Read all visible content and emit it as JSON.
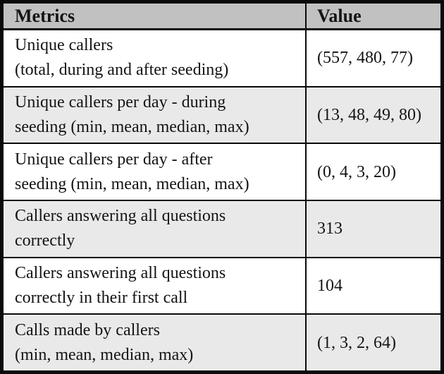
{
  "table": {
    "header": {
      "metric": "Metrics",
      "value": "Value"
    },
    "rows": [
      {
        "lines": [
          "Unique callers",
          "(total, during and after seeding)"
        ],
        "value": "(557, 480, 77)"
      },
      {
        "lines": [
          "Unique callers per day - during",
          "seeding (min, mean, median, max)"
        ],
        "value": "(13, 48, 49, 80)"
      },
      {
        "lines": [
          "Unique callers per day - after",
          "seeding (min, mean, median, max)"
        ],
        "value": "(0, 4, 3, 20)"
      },
      {
        "lines": [
          "Callers answering all questions",
          "correctly"
        ],
        "value": "313"
      },
      {
        "lines": [
          "Callers answering all questions",
          "correctly in their first call"
        ],
        "value": "104"
      },
      {
        "lines": [
          "Calls made by callers",
          "(min, mean, median, max)"
        ],
        "value": "(1, 3, 2, 64)"
      }
    ]
  },
  "colors": {
    "header_bg": "#c1c1c1",
    "stripe_bg": "#e9e9e9",
    "border": "#0a0a0a",
    "text": "#141414"
  }
}
